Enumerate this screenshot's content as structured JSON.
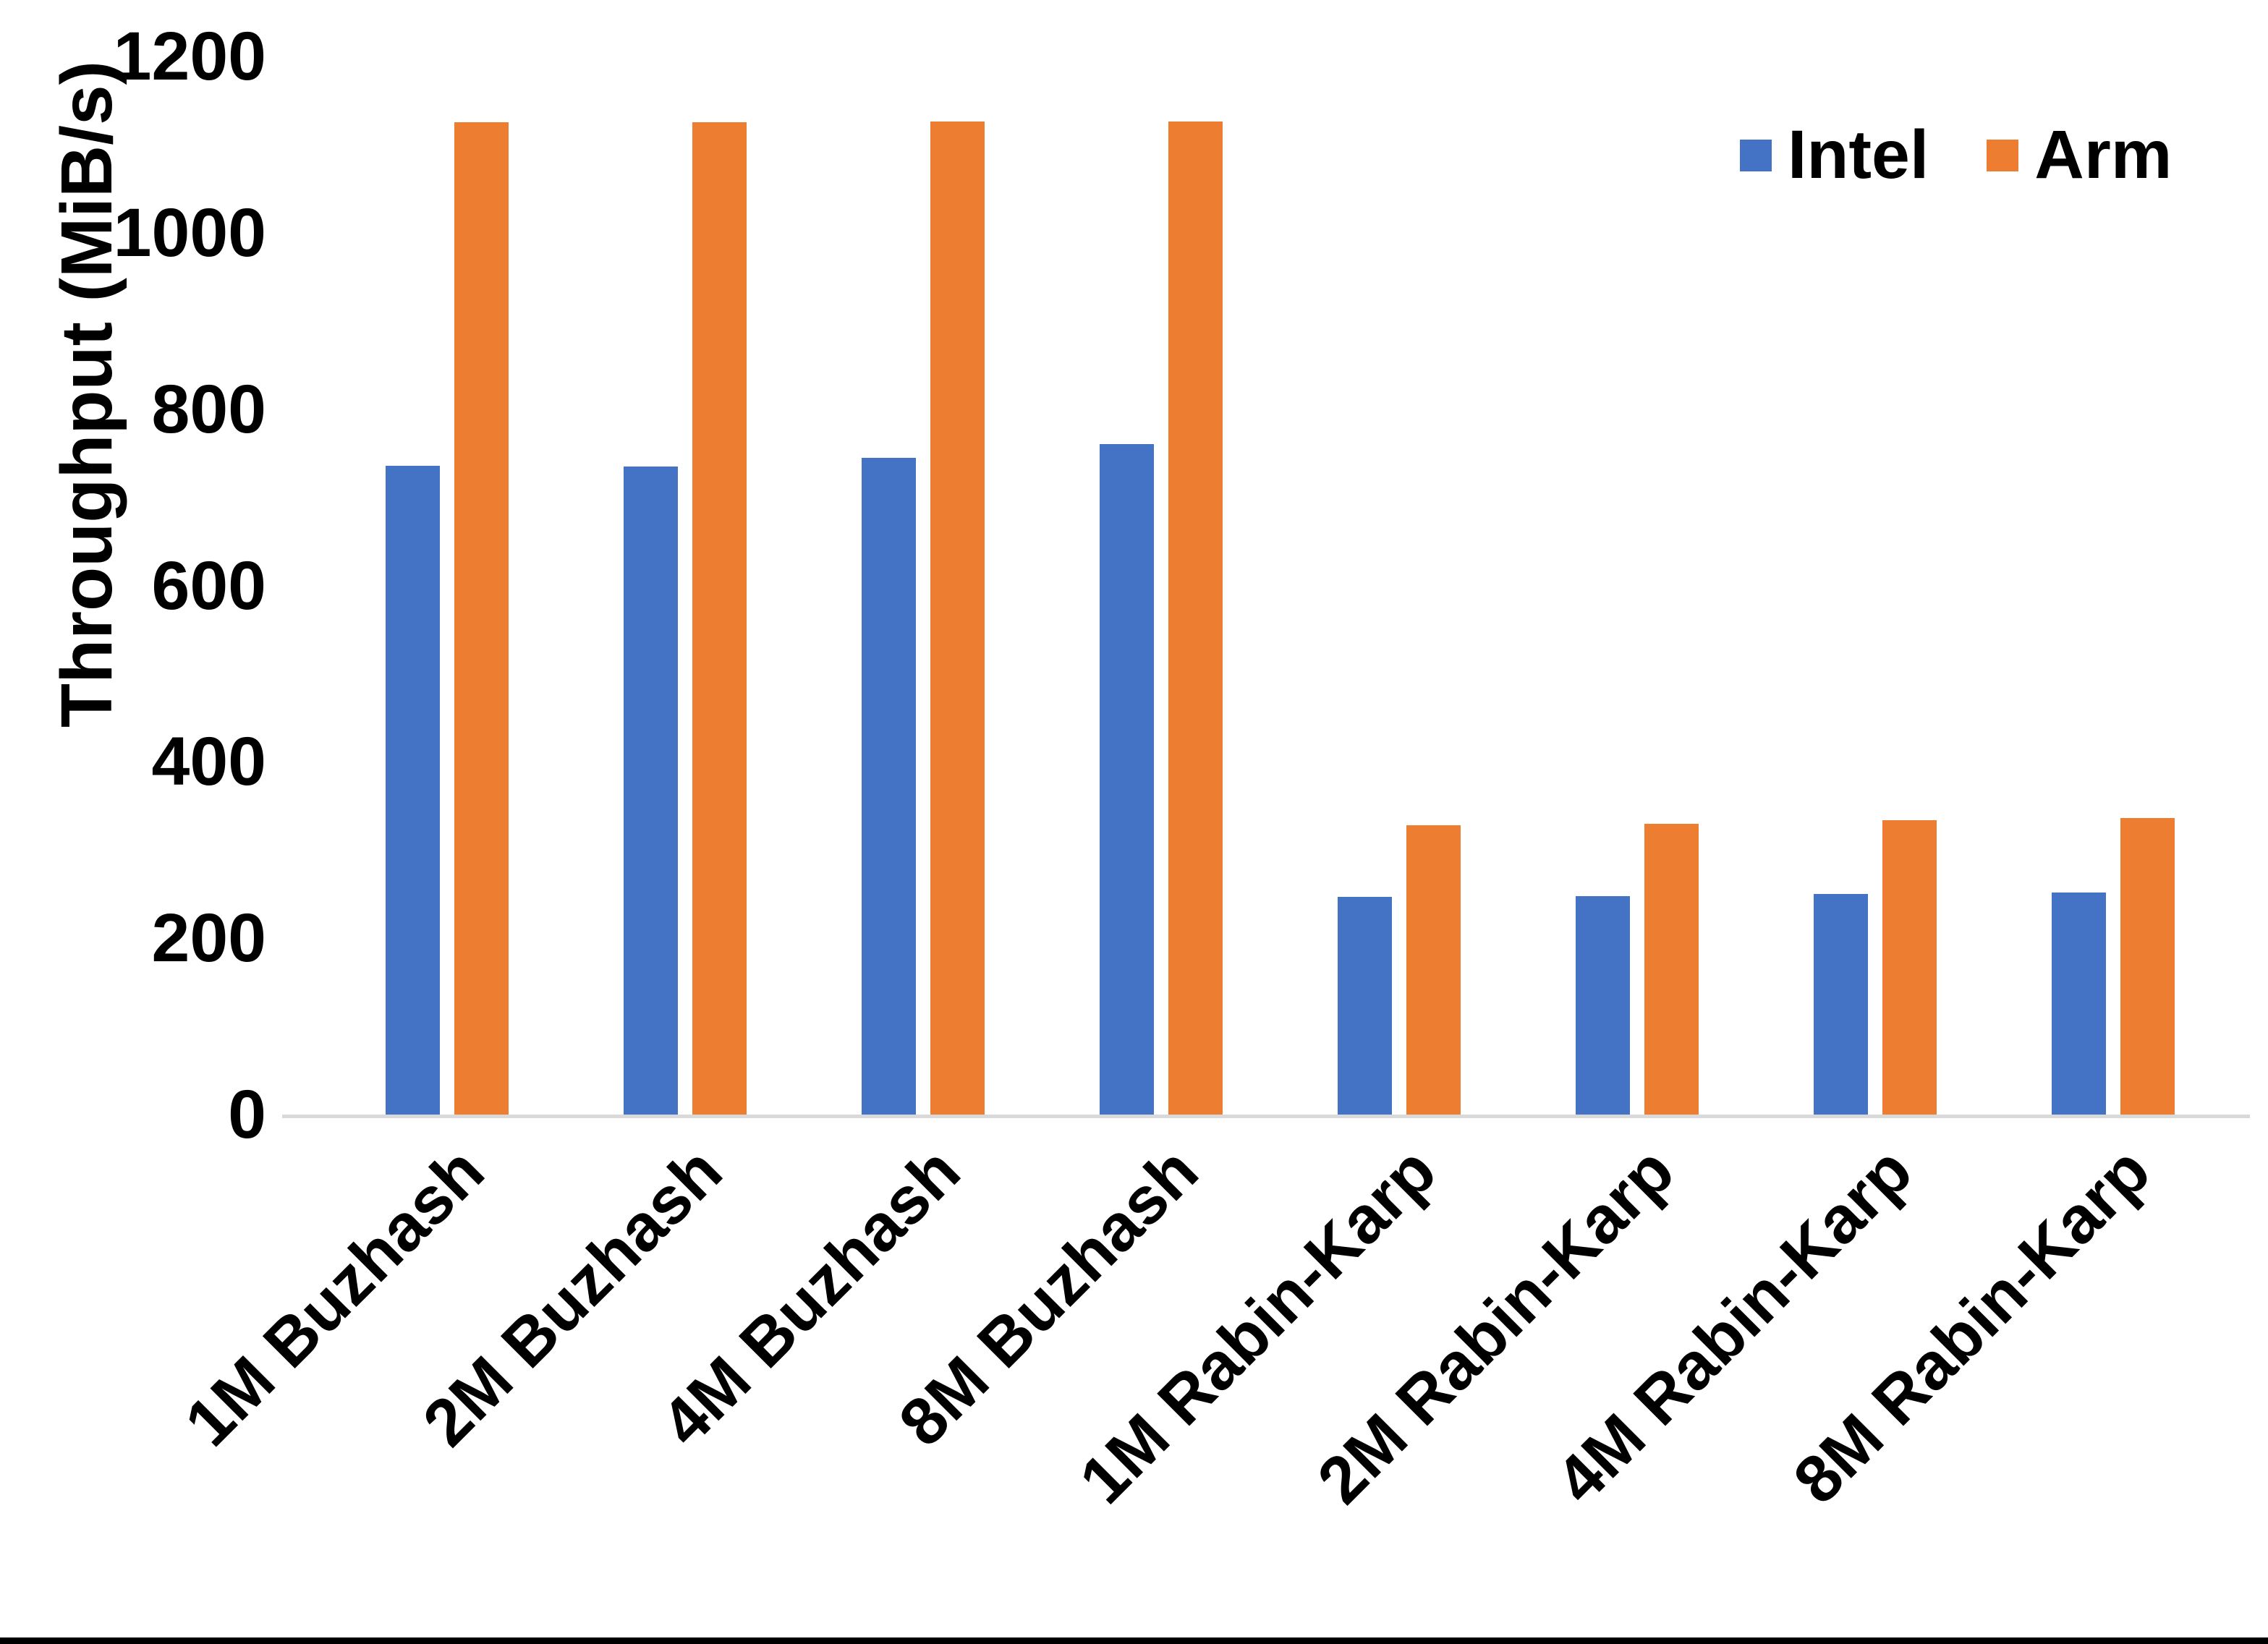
{
  "chart_data": {
    "type": "bar",
    "title": "",
    "xlabel": "",
    "ylabel": "Throughput (MiB/s)",
    "categories": [
      "1M Buzhash",
      "2M Buzhash",
      "4M Buzhash",
      "8M Buzhash",
      "1M Rabin-Karp",
      "2M Rabin-Karp",
      "4M Rabin-Karp",
      "8M Rabin-Karp"
    ],
    "series": [
      {
        "name": "Intel",
        "color": "#4472C4",
        "values": [
          736,
          735,
          745,
          760,
          247,
          248,
          250,
          252
        ]
      },
      {
        "name": "Arm",
        "color": "#ED7D31",
        "values": [
          1125,
          1125,
          1126,
          1126,
          328,
          330,
          334,
          336
        ]
      }
    ],
    "ylim": [
      0,
      1200
    ],
    "yticks": [
      0,
      200,
      400,
      600,
      800,
      1000,
      1200
    ],
    "grid": "off",
    "legend_position": "top-right"
  },
  "colors": {
    "axis_line": "#D9D9D9",
    "text": "#000000",
    "bottom_border": "#000000",
    "background": "#FFFFFF"
  }
}
